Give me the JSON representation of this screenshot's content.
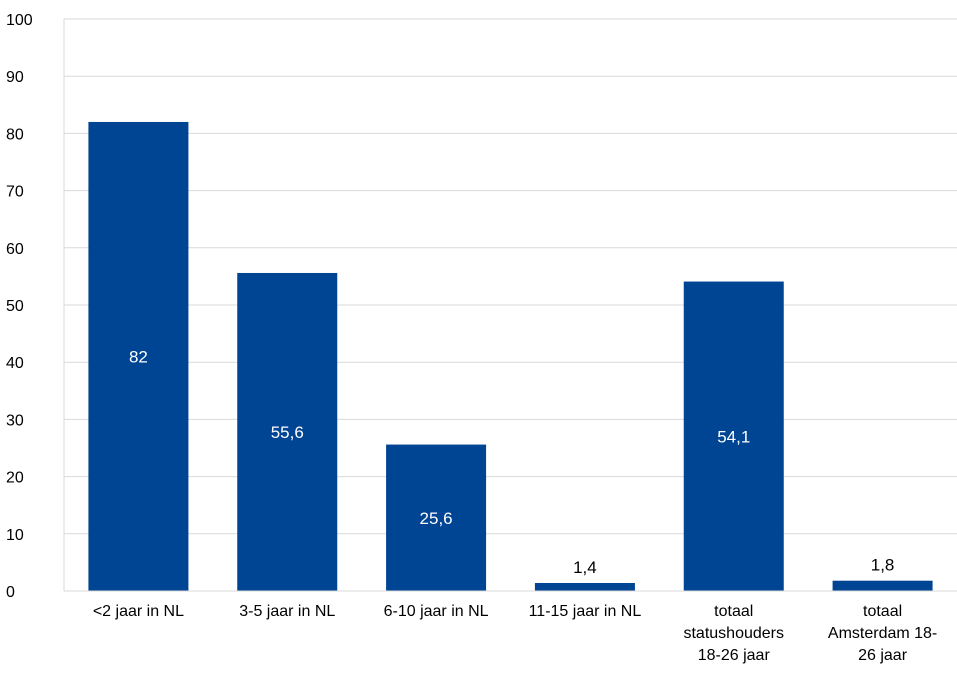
{
  "chart_data": {
    "type": "bar",
    "title": "",
    "xlabel": "",
    "ylabel": "",
    "ylim": [
      0,
      100
    ],
    "yticks": [
      0,
      10,
      20,
      30,
      40,
      50,
      60,
      70,
      80,
      90,
      100
    ],
    "grid": true,
    "legend": "none",
    "categories": [
      [
        "<2 jaar in NL"
      ],
      [
        "3-5 jaar in NL"
      ],
      [
        "6-10 jaar in NL"
      ],
      [
        "11-15 jaar in NL"
      ],
      [
        "totaal",
        "statushouders",
        "18-26 jaar"
      ],
      [
        "totaal",
        "Amsterdam 18-",
        "26 jaar"
      ]
    ],
    "values": [
      82,
      55.6,
      25.6,
      1.4,
      54.1,
      1.8
    ],
    "data_labels": [
      "82",
      "55,6",
      "25,6",
      "1,4",
      "54,1",
      "1,8"
    ],
    "bar_color": "#004494",
    "inside_label_color": "#ffffff",
    "outside_label_color": "#000000",
    "grid_color": "#d9d9d9"
  }
}
